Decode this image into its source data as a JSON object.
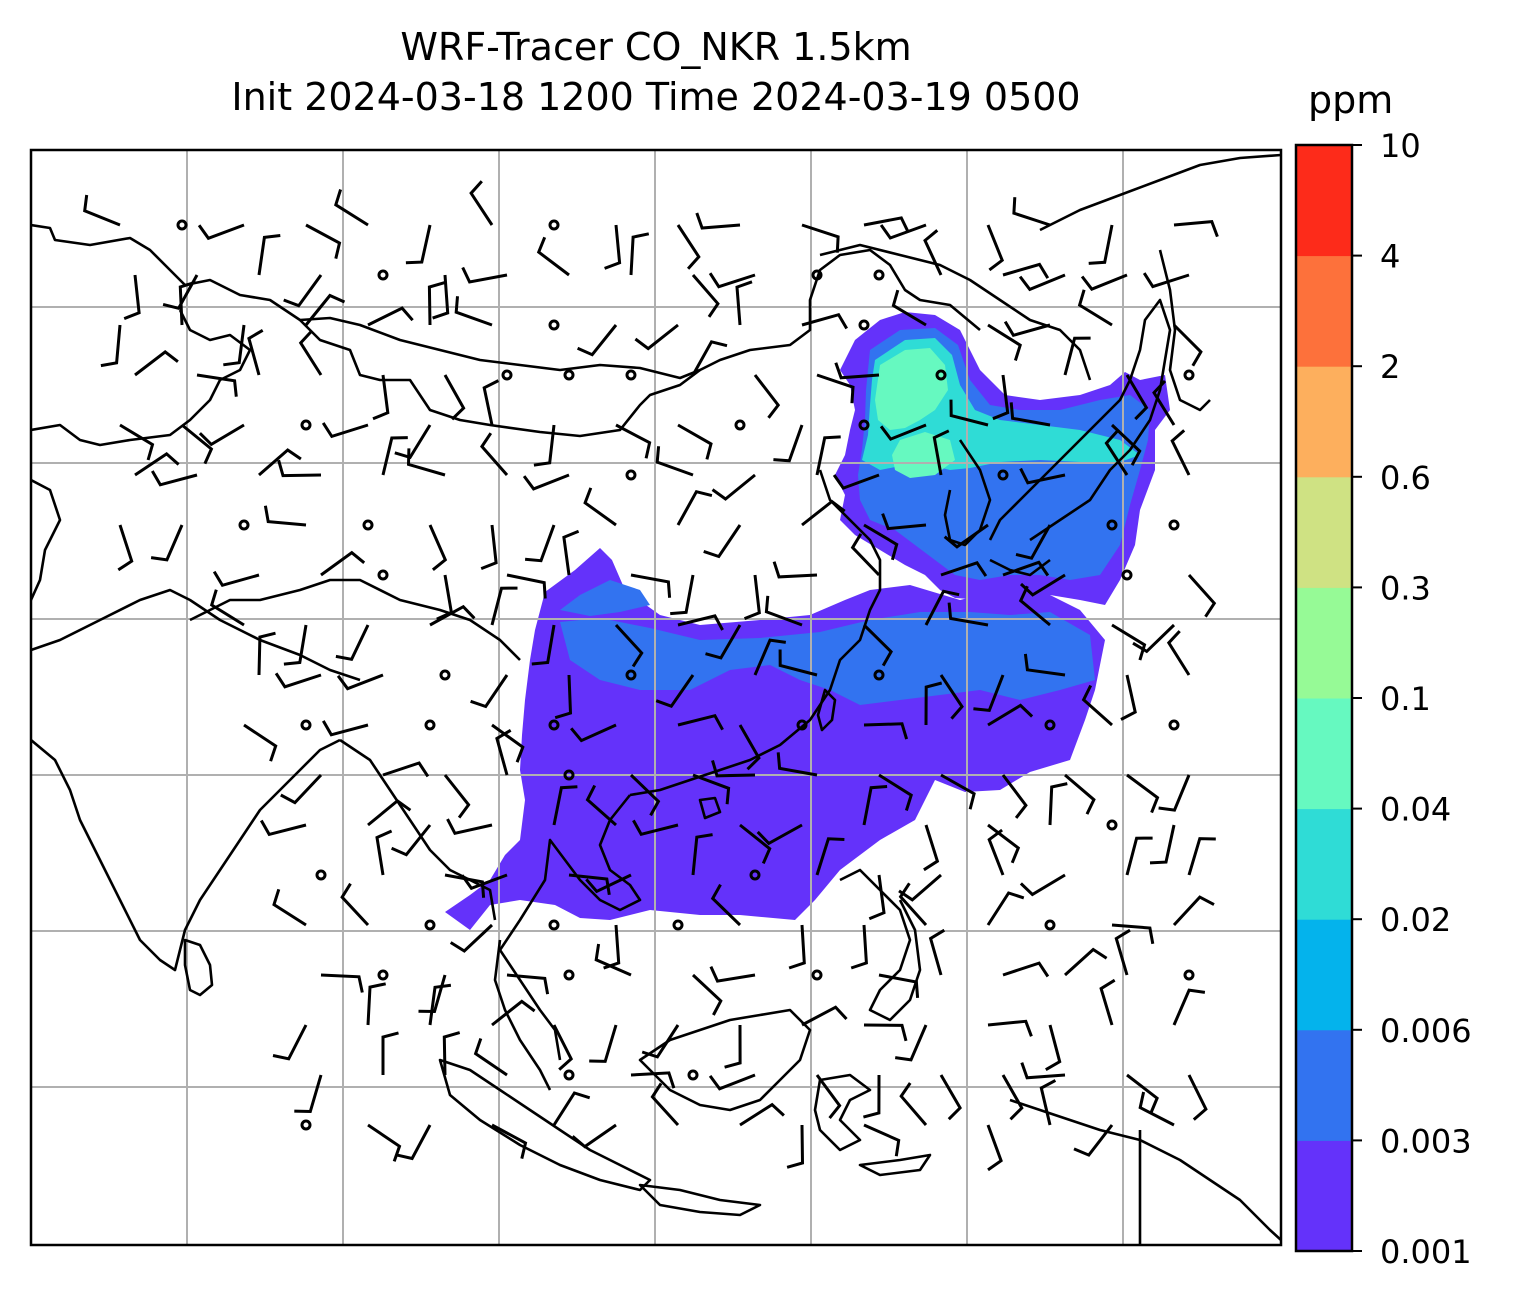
{
  "figure": {
    "title_line1": "WRF-Tracer CO_NKR 1.5km",
    "title_line2": "Init 2024-03-18 1200 Time 2024-03-19 0500"
  },
  "colorbar": {
    "unit": "ppm",
    "levels": [
      "0.001",
      "0.003",
      "0.006",
      "0.02",
      "0.04",
      "0.1",
      "0.3",
      "0.6",
      "2",
      "4",
      "10"
    ],
    "colors": [
      "#6432fa",
      "#3273f0",
      "#04b3ec",
      "#2fdcd6",
      "#66f9c0",
      "#96fa96",
      "#cfe283",
      "#fdaf5d",
      "#fd713b",
      "#fd2b1a"
    ]
  },
  "map": {
    "gridlines": true,
    "plume_colors": {
      "lowest": "#6432fa",
      "low": "#3273f0",
      "mid": "#2fdcd6",
      "high": "#66f9c0"
    },
    "wind_barbs": "black",
    "coastlines": "black"
  }
}
